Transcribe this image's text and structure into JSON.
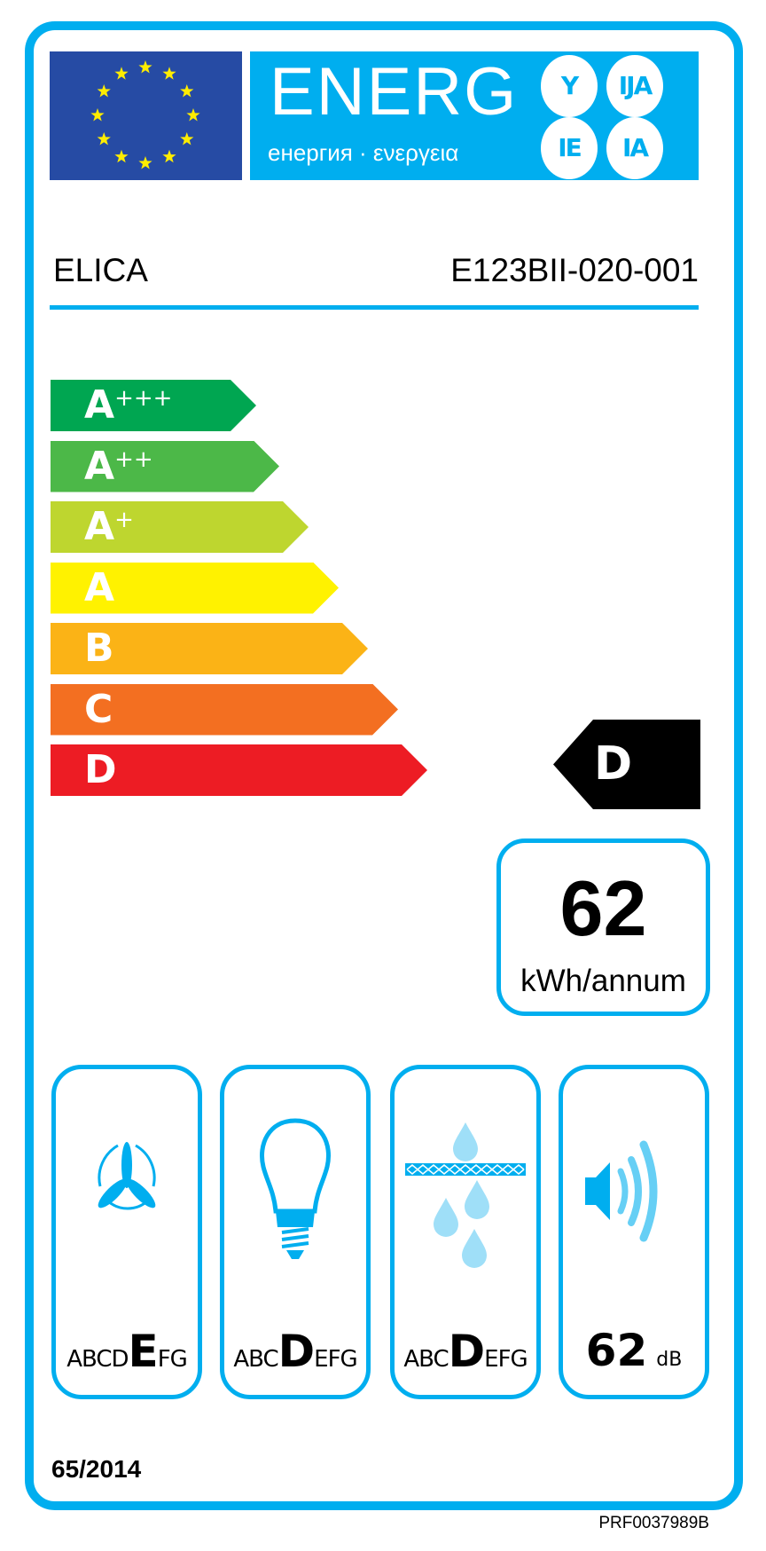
{
  "header": {
    "title": "ENERG",
    "subtitle": "енергия · ενεργεια",
    "language_suffixes": [
      "Y",
      "IJA",
      "IE",
      "IA"
    ],
    "flag_icon": "eu-flag-icon"
  },
  "supplier": {
    "brand": "ELICA",
    "model": "E123BII-020-001"
  },
  "scale": {
    "classes": [
      {
        "letter": "A",
        "plus": "+++",
        "color": "#00a651"
      },
      {
        "letter": "A",
        "plus": "++",
        "color": "#4cb848"
      },
      {
        "letter": "A",
        "plus": "+",
        "color": "#bed62f"
      },
      {
        "letter": "A",
        "plus": "",
        "color": "#fff200"
      },
      {
        "letter": "B",
        "plus": "",
        "color": "#fbb316"
      },
      {
        "letter": "C",
        "plus": "",
        "color": "#f36f21"
      },
      {
        "letter": "D",
        "plus": "",
        "color": "#ed1c24"
      }
    ],
    "rating": "D"
  },
  "consumption": {
    "value": "62",
    "unit": "kWh/annum"
  },
  "pictograms": {
    "fluid_dynamic": {
      "icon": "fan-icon",
      "before": "ABCD",
      "class": "E",
      "after": "FG"
    },
    "lighting": {
      "icon": "light-bulb-icon",
      "before": "ABC",
      "class": "D",
      "after": "EFG"
    },
    "grease_filter": {
      "icon": "grease-filter-icon",
      "before": "ABC",
      "class": "D",
      "after": "EFG"
    },
    "noise": {
      "icon": "speaker-icon",
      "value": "62",
      "unit": "dB"
    }
  },
  "regulation": "65/2014",
  "reference": "PRF0037989B",
  "colors": {
    "accent": "#00aeef",
    "flag": "#264ba4",
    "stars": "#ffed00"
  }
}
